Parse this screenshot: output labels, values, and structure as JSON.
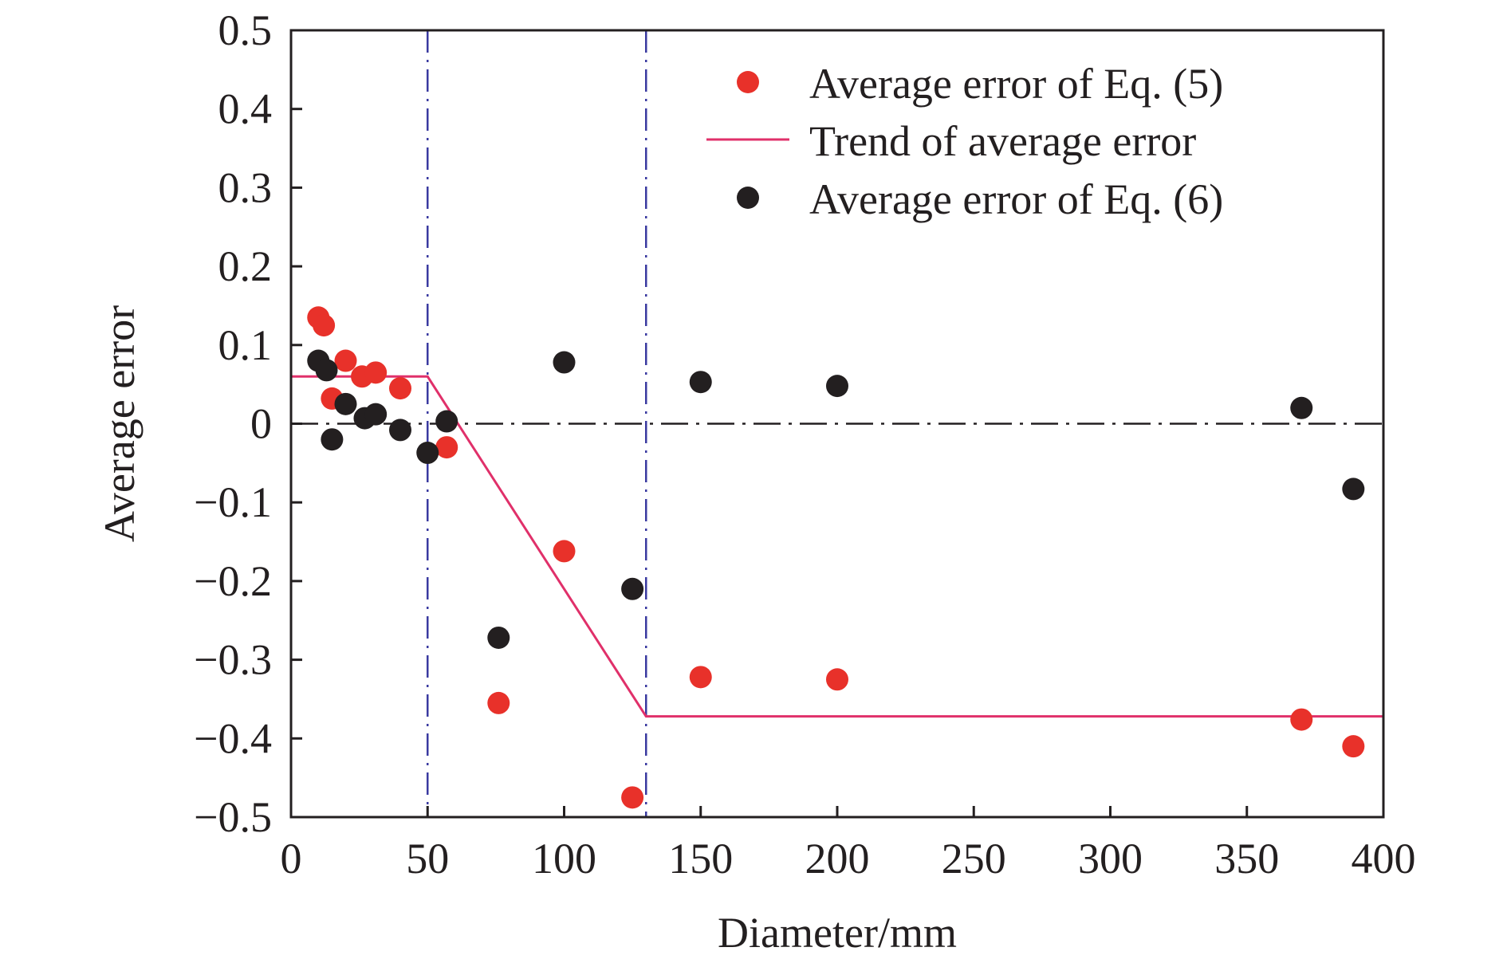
{
  "chart_data": {
    "type": "scatter",
    "xlabel": "Diameter/mm",
    "ylabel": "Average error",
    "xlim": [
      0,
      400
    ],
    "ylim": [
      -0.5,
      0.5
    ],
    "x_ticks": [
      0,
      50,
      100,
      150,
      200,
      250,
      300,
      350,
      400
    ],
    "x_tick_labels": [
      "0",
      "50",
      "100",
      "150",
      "200",
      "250",
      "300",
      "350",
      "400"
    ],
    "y_ticks": [
      -0.5,
      -0.4,
      -0.3,
      -0.2,
      -0.1,
      0,
      0.1,
      0.2,
      0.3,
      0.4,
      0.5
    ],
    "y_tick_labels": [
      "−0.5",
      "−0.4",
      "−0.3",
      "−0.2",
      "−0.1",
      "0",
      "0.1",
      "0.2",
      "0.3",
      "0.4",
      "0.5"
    ],
    "grid": false,
    "legend_position": "top-right",
    "reference_lines": {
      "vertical_x": [
        50,
        130
      ],
      "horizontal_y": [
        0
      ]
    },
    "series": [
      {
        "name": "Average error of Eq. (5)",
        "kind": "scatter",
        "color": "#e8312a",
        "points": [
          [
            10,
            0.135
          ],
          [
            12,
            0.125
          ],
          [
            15,
            0.032
          ],
          [
            20,
            0.08
          ],
          [
            26,
            0.06
          ],
          [
            31,
            0.065
          ],
          [
            40,
            0.045
          ],
          [
            57,
            -0.03
          ],
          [
            76,
            -0.355
          ],
          [
            100,
            -0.162
          ],
          [
            125,
            -0.475
          ],
          [
            150,
            -0.322
          ],
          [
            200,
            -0.325
          ],
          [
            370,
            -0.376
          ],
          [
            389,
            -0.41
          ]
        ]
      },
      {
        "name": "Trend of average error",
        "kind": "line",
        "color": "#e0306a",
        "points": [
          [
            0,
            0.06
          ],
          [
            50,
            0.06
          ],
          [
            130,
            -0.372
          ],
          [
            400,
            -0.372
          ]
        ]
      },
      {
        "name": "Average error of Eq. (6)",
        "kind": "scatter",
        "color": "#231f20",
        "points": [
          [
            10,
            0.08
          ],
          [
            13,
            0.068
          ],
          [
            15,
            -0.02
          ],
          [
            20,
            0.025
          ],
          [
            27,
            0.007
          ],
          [
            31,
            0.012
          ],
          [
            40,
            -0.008
          ],
          [
            50,
            -0.037
          ],
          [
            57,
            0.003
          ],
          [
            76,
            -0.272
          ],
          [
            100,
            0.078
          ],
          [
            125,
            -0.21
          ],
          [
            150,
            0.053
          ],
          [
            200,
            0.048
          ],
          [
            370,
            0.02
          ],
          [
            389,
            -0.083
          ]
        ]
      }
    ]
  }
}
